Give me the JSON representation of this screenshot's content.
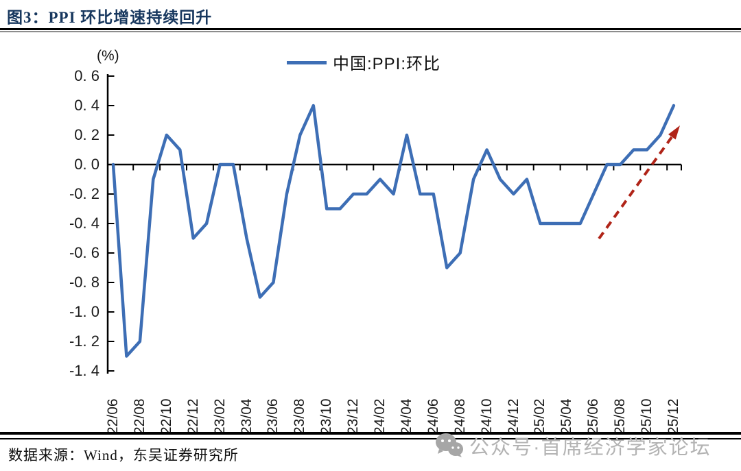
{
  "figure": {
    "title": "图3：PPI 环比增速持续回升",
    "source_note": "数据来源：Wind，东吴证券研究所",
    "watermark_text": "公众号·首席经济学家论坛",
    "watermark_icon": "wechat-icon"
  },
  "chart_data": {
    "type": "line",
    "title": "图3：PPI 环比增速持续回升",
    "unit_label": "(%)",
    "xlabel": "",
    "ylabel": "(%)",
    "ylim": [
      -1.4,
      0.6
    ],
    "y_tick_step": 0.2,
    "grid": false,
    "legend": {
      "label": "中国:PPI:环比",
      "position": "top-center"
    },
    "y_tick_labels": [
      "0. 6",
      "0. 4",
      "0. 2",
      "0. 0",
      "-0. 2",
      "-0. 4",
      "-0. 6",
      "-0. 8",
      "-1. 0",
      "-1. 2",
      "-1. 4"
    ],
    "x_tick_labels": [
      "22/06",
      "22/08",
      "22/10",
      "22/12",
      "23/02",
      "23/04",
      "23/06",
      "23/08",
      "23/10",
      "23/12",
      "24/02",
      "24/04",
      "24/06",
      "24/08",
      "24/10",
      "24/12",
      "25/02",
      "25/04",
      "25/06",
      "25/08",
      "25/10",
      "25/12"
    ],
    "series": [
      {
        "name": "中国:PPI:环比",
        "color": "#3D6EB5",
        "x": [
          "22/06",
          "22/07",
          "22/08",
          "22/09",
          "22/10",
          "22/11",
          "22/12",
          "23/01",
          "23/02",
          "23/03",
          "23/04",
          "23/05",
          "23/06",
          "23/07",
          "23/08",
          "23/09",
          "23/10",
          "23/11",
          "23/12",
          "24/01",
          "24/02",
          "24/03",
          "24/04",
          "24/05",
          "24/06",
          "24/07",
          "24/08",
          "24/09",
          "24/10",
          "24/11",
          "24/12",
          "25/01",
          "25/02",
          "25/03",
          "25/04",
          "25/05",
          "25/06",
          "25/07",
          "25/08",
          "25/09",
          "25/10",
          "25/11",
          "25/12"
        ],
        "values": [
          0.0,
          -1.3,
          -1.2,
          -0.1,
          0.2,
          0.1,
          -0.5,
          -0.4,
          0.0,
          0.0,
          -0.5,
          -0.9,
          -0.8,
          -0.2,
          0.2,
          0.4,
          -0.3,
          -0.3,
          -0.2,
          -0.2,
          -0.1,
          -0.2,
          0.2,
          -0.2,
          -0.2,
          -0.7,
          -0.6,
          -0.1,
          0.1,
          -0.1,
          -0.2,
          -0.1,
          -0.4,
          -0.4,
          -0.4,
          -0.4,
          -0.2,
          0.0,
          0.0,
          0.1,
          0.1,
          0.2,
          0.4
        ]
      }
    ],
    "annotation_arrow": {
      "style": "dashed",
      "color": "#B02418",
      "from": {
        "month": "25/06",
        "value": -0.5
      },
      "to": {
        "month": "25/12",
        "value": 0.27
      }
    }
  }
}
